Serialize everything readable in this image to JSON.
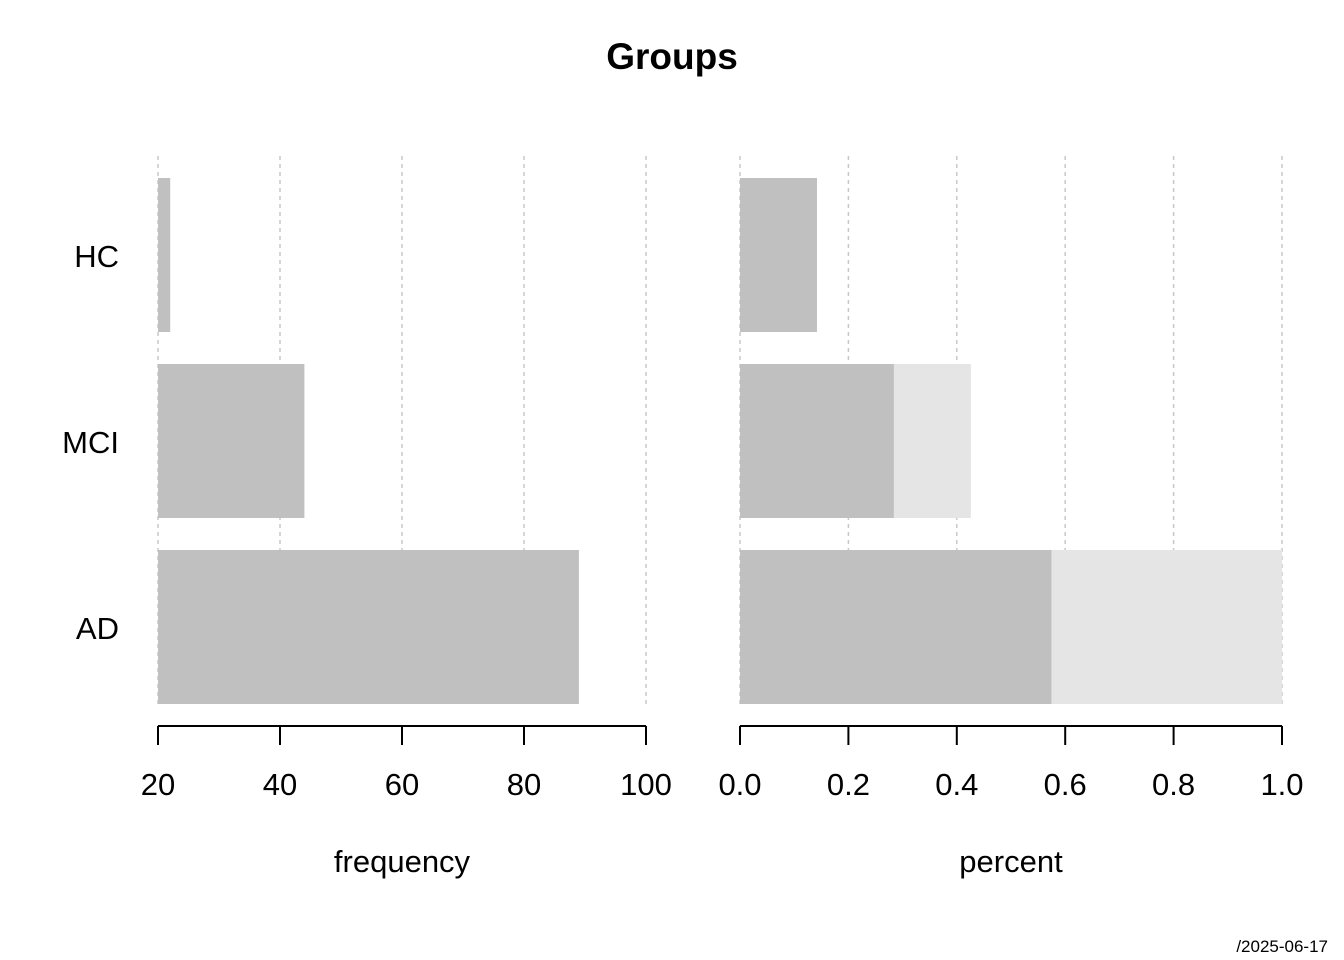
{
  "title": "Groups",
  "footer": "/2025-06-17",
  "colors": {
    "bar": "#c0c0c0",
    "bar_light": "#e5e5e5",
    "grid": "#c8c8c8",
    "axis": "#000000"
  },
  "chart_data": [
    {
      "type": "bar",
      "orientation": "horizontal",
      "categories": [
        "HC",
        "MCI",
        "AD"
      ],
      "values": [
        22,
        44,
        89
      ],
      "xlabel": "frequency",
      "xlim": [
        20,
        100
      ],
      "xticks": [
        20,
        40,
        60,
        80,
        100
      ],
      "grid": true
    },
    {
      "type": "bar",
      "orientation": "horizontal",
      "stacked": true,
      "categories": [
        "HC",
        "MCI",
        "AD"
      ],
      "series": [
        {
          "values": [
            0.142,
            0.284,
            0.575
          ]
        },
        {
          "values": [
            0,
            0.142,
            0.425
          ]
        }
      ],
      "xlabel": "percent",
      "xlim": [
        0,
        1
      ],
      "xticks": [
        "0.0",
        "0.2",
        "0.4",
        "0.6",
        "0.8",
        "1.0"
      ],
      "grid": true
    }
  ]
}
